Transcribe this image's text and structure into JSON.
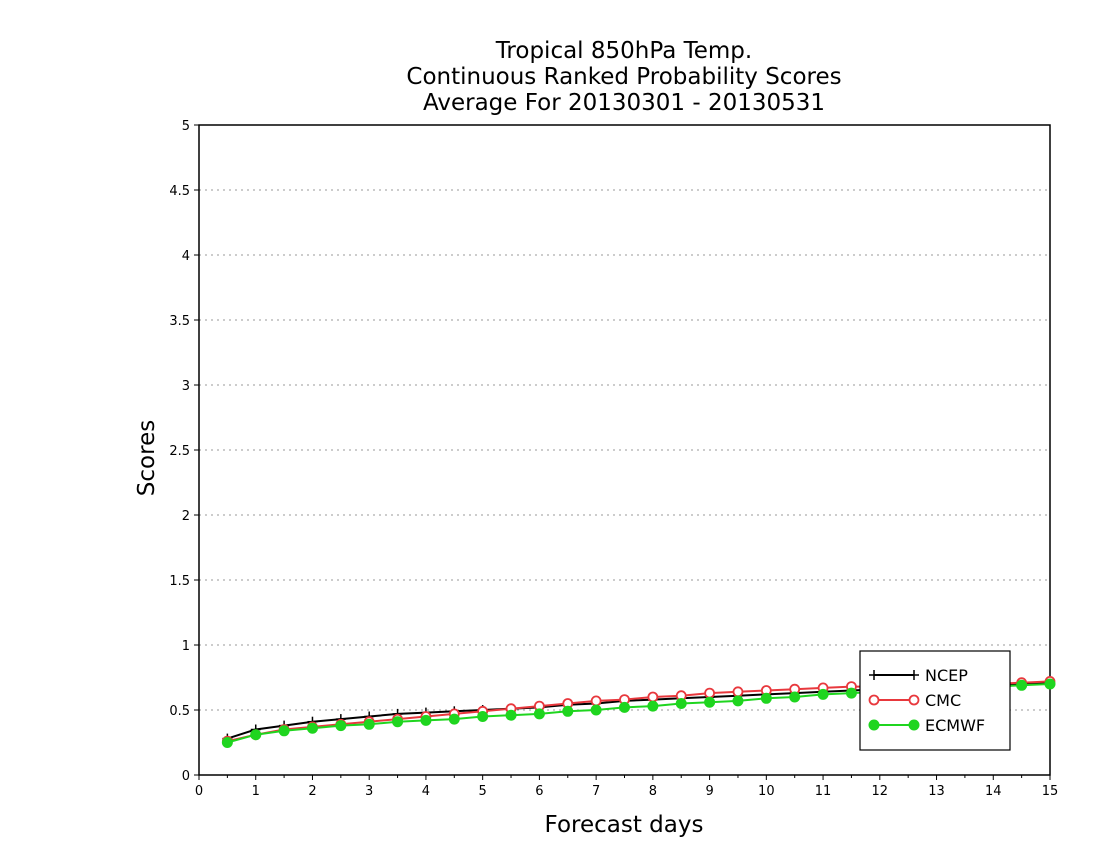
{
  "chart_data": {
    "type": "line",
    "title": [
      "Tropical 850hPa Temp.",
      "Continuous Ranked Probability Scores",
      "Average For 20130301 - 20130531"
    ],
    "xlabel": "Forecast days",
    "ylabel": "Scores",
    "xlim": [
      0,
      15
    ],
    "ylim": [
      0,
      5
    ],
    "xticks": [
      "0",
      "1",
      "2",
      "3",
      "4",
      "5",
      "6",
      "7",
      "8",
      "9",
      "10",
      "11",
      "12",
      "13",
      "14",
      "15"
    ],
    "yticks": [
      "0",
      "0.5",
      "1",
      "1.5",
      "2",
      "2.5",
      "3",
      "3.5",
      "4",
      "4.5",
      "5"
    ],
    "grid": "horizontal dotted",
    "legend_position": "bottom-right",
    "x": [
      0.5,
      1,
      1.5,
      2,
      2.5,
      3,
      3.5,
      4,
      4.5,
      5,
      5.5,
      6,
      6.5,
      7,
      7.5,
      8,
      8.5,
      9,
      9.5,
      10,
      10.5,
      11,
      11.5,
      12,
      12.5,
      13,
      13.5,
      14,
      14.5,
      15
    ],
    "series": [
      {
        "name": "NCEP",
        "color": "#000000",
        "marker": "plus",
        "values": [
          0.28,
          0.35,
          0.38,
          0.41,
          0.43,
          0.45,
          0.47,
          0.48,
          0.49,
          0.5,
          0.51,
          0.52,
          0.54,
          0.55,
          0.57,
          0.58,
          0.59,
          0.6,
          0.61,
          0.62,
          0.63,
          0.64,
          0.65,
          0.66,
          0.67,
          0.68,
          0.68,
          0.69,
          0.7,
          0.71
        ]
      },
      {
        "name": "CMC",
        "color": "#e8383d",
        "marker": "open-circle",
        "values": [
          0.26,
          0.31,
          0.35,
          0.37,
          0.39,
          0.41,
          0.43,
          0.45,
          0.47,
          0.49,
          0.51,
          0.53,
          0.55,
          0.57,
          0.58,
          0.6,
          0.61,
          0.63,
          0.64,
          0.65,
          0.66,
          0.67,
          0.68,
          0.68,
          0.69,
          0.69,
          0.7,
          0.7,
          0.71,
          0.72
        ]
      },
      {
        "name": "ECMWF",
        "color": "#1fd51f",
        "marker": "filled-circle",
        "values": [
          0.25,
          0.31,
          0.34,
          0.36,
          0.38,
          0.39,
          0.41,
          0.42,
          0.43,
          0.45,
          0.46,
          0.47,
          0.49,
          0.5,
          0.52,
          0.53,
          0.55,
          0.56,
          0.57,
          0.59,
          0.6,
          0.62,
          0.63,
          0.64,
          0.65,
          0.66,
          0.67,
          0.68,
          0.69,
          0.7
        ]
      }
    ]
  }
}
